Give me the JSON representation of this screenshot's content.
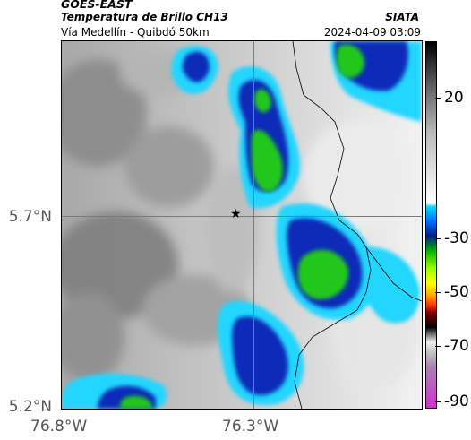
{
  "header": {
    "satellite": "GOES-EAST",
    "product": "Temperatura de Brillo CH13",
    "region": "Vía Medellín - Quibdó 50km",
    "agency": "SIATA",
    "timestamp": "2024-04-09 03:09"
  },
  "map": {
    "lat_labels": [
      "5.7°N",
      "5.2°N"
    ],
    "lon_labels": [
      "76.8°W",
      "76.3°W"
    ],
    "grid_lat": 5.7,
    "grid_lon": -76.3,
    "marker": "star-icon",
    "colors": {
      "cold_cloud_green": "#22c71e",
      "deep_blue": "#0a2bb8",
      "cyan_edge": "#22d6ff",
      "clear_grey": "#8c8c8c"
    }
  },
  "colorbar": {
    "ticks": [
      "20",
      "-30",
      "-50",
      "-70",
      "-90"
    ]
  }
}
